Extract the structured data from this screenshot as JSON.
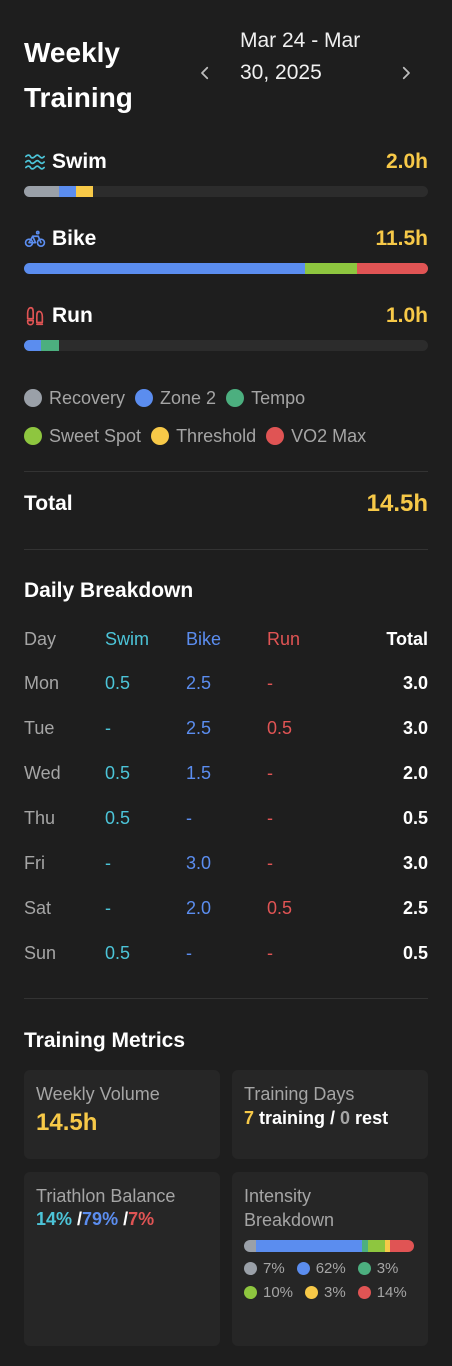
{
  "header": {
    "title": "Weekly Training",
    "date_range": "Mar 24 - Mar 30, 2025",
    "prev_icon": "chevron-left-icon",
    "next_icon": "chevron-right-icon"
  },
  "colors": {
    "recovery": "#9aa0a8",
    "zone2": "#5b8def",
    "tempo": "#4caf7f",
    "sweet_spot": "#8ec63f",
    "threshold": "#f7c948",
    "vo2max": "#e05454",
    "swim": "#4cc4d8",
    "bike": "#5b8def",
    "run": "#e05454",
    "accent": "#f7c948"
  },
  "sports": [
    {
      "name": "Swim",
      "icon": "waves-icon",
      "hours": "2.0h",
      "zones": [
        {
          "zone": "recovery",
          "fraction": 0.087
        },
        {
          "zone": "zone2",
          "fraction": 0.042
        },
        {
          "zone": "threshold",
          "fraction": 0.043
        }
      ]
    },
    {
      "name": "Bike",
      "icon": "bicycle-icon",
      "hours": "11.5h",
      "zones": [
        {
          "zone": "zone2",
          "fraction": 0.695
        },
        {
          "zone": "sweet_spot",
          "fraction": 0.13
        },
        {
          "zone": "vo2max",
          "fraction": 0.175
        }
      ]
    },
    {
      "name": "Run",
      "icon": "footprints-icon",
      "hours": "1.0h",
      "zones": [
        {
          "zone": "zone2",
          "fraction": 0.043
        },
        {
          "zone": "tempo",
          "fraction": 0.043
        }
      ]
    }
  ],
  "legend": [
    [
      {
        "label": "Recovery",
        "zone": "recovery"
      },
      {
        "label": "Zone 2",
        "zone": "zone2"
      },
      {
        "label": "Tempo",
        "zone": "tempo"
      }
    ],
    [
      {
        "label": "Sweet Spot",
        "zone": "sweet_spot"
      },
      {
        "label": "Threshold",
        "zone": "threshold"
      },
      {
        "label": "VO2 Max",
        "zone": "vo2max"
      }
    ]
  ],
  "total": {
    "label": "Total",
    "value": "14.5h"
  },
  "daily": {
    "title": "Daily Breakdown",
    "columns": [
      "Day",
      "Swim",
      "Bike",
      "Run",
      "Total"
    ],
    "rows": [
      [
        "Mon",
        "0.5",
        "2.5",
        "-",
        "3.0"
      ],
      [
        "Tue",
        "-",
        "2.5",
        "0.5",
        "3.0"
      ],
      [
        "Wed",
        "0.5",
        "1.5",
        "-",
        "2.0"
      ],
      [
        "Thu",
        "0.5",
        "-",
        "-",
        "0.5"
      ],
      [
        "Fri",
        "-",
        "3.0",
        "-",
        "3.0"
      ],
      [
        "Sat",
        "-",
        "2.0",
        "0.5",
        "2.5"
      ],
      [
        "Sun",
        "0.5",
        "-",
        "-",
        "0.5"
      ]
    ]
  },
  "metrics": {
    "title": "Training Metrics",
    "weekly_volume": {
      "label": "Weekly Volume",
      "value": "14.5h"
    },
    "training_days": {
      "label": "Training Days",
      "training": "7",
      "training_text": " training / ",
      "rest": "0",
      "rest_text": " rest"
    },
    "balance": {
      "label": "Triathlon Balance",
      "swim": "14%",
      "sep1": " /",
      "bike": "79%",
      "sep2": " /",
      "run": "7%"
    },
    "intensity": {
      "label": "Intensity Breakdown",
      "items": [
        {
          "zone": "recovery",
          "pct": "7%",
          "value": 7
        },
        {
          "zone": "zone2",
          "pct": "62%",
          "value": 62
        },
        {
          "zone": "tempo",
          "pct": "3%",
          "value": 3
        },
        {
          "zone": "sweet_spot",
          "pct": "10%",
          "value": 10
        },
        {
          "zone": "threshold",
          "pct": "3%",
          "value": 3
        },
        {
          "zone": "vo2max",
          "pct": "14%",
          "value": 14
        }
      ]
    }
  }
}
